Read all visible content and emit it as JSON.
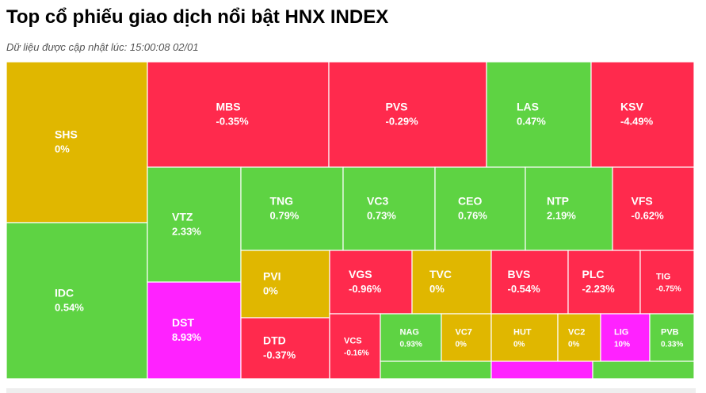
{
  "header": {
    "title": "Top cổ phiếu giao dịch nổi bật HNX INDEX",
    "subtitle": "Dữ liệu được cập nhật lúc: 15:00:08 02/01"
  },
  "colors": {
    "up": "#5ed343",
    "down": "#ff2a4d",
    "unchanged": "#e0b700",
    "ceiling": "#ff22ff"
  },
  "chart_data": {
    "type": "treemap",
    "title": "Top cổ phiếu giao dịch nổi bật HNX INDEX",
    "cells": [
      {
        "ticker": "SHS",
        "change": "0%",
        "status": "unchanged"
      },
      {
        "ticker": "IDC",
        "change": "0.54%",
        "status": "up"
      },
      {
        "ticker": "MBS",
        "change": "-0.35%",
        "status": "down"
      },
      {
        "ticker": "PVS",
        "change": "-0.29%",
        "status": "down"
      },
      {
        "ticker": "LAS",
        "change": "0.47%",
        "status": "up"
      },
      {
        "ticker": "KSV",
        "change": "-4.49%",
        "status": "down"
      },
      {
        "ticker": "VTZ",
        "change": "2.33%",
        "status": "up"
      },
      {
        "ticker": "DST",
        "change": "8.93%",
        "status": "ceiling"
      },
      {
        "ticker": "TNG",
        "change": "0.79%",
        "status": "up"
      },
      {
        "ticker": "VC3",
        "change": "0.73%",
        "status": "up"
      },
      {
        "ticker": "CEO",
        "change": "0.76%",
        "status": "up"
      },
      {
        "ticker": "NTP",
        "change": "2.19%",
        "status": "up"
      },
      {
        "ticker": "VFS",
        "change": "-0.62%",
        "status": "down"
      },
      {
        "ticker": "PVI",
        "change": "0%",
        "status": "unchanged"
      },
      {
        "ticker": "VGS",
        "change": "-0.96%",
        "status": "down"
      },
      {
        "ticker": "TVC",
        "change": "0%",
        "status": "unchanged"
      },
      {
        "ticker": "BVS",
        "change": "-0.54%",
        "status": "down"
      },
      {
        "ticker": "PLC",
        "change": "-2.23%",
        "status": "down"
      },
      {
        "ticker": "TIG",
        "change": "-0.75%",
        "status": "down"
      },
      {
        "ticker": "DTD",
        "change": "-0.37%",
        "status": "down"
      },
      {
        "ticker": "VCS",
        "change": "-0.16%",
        "status": "down"
      },
      {
        "ticker": "NAG",
        "change": "0.93%",
        "status": "up"
      },
      {
        "ticker": "VC7",
        "change": "0%",
        "status": "unchanged"
      },
      {
        "ticker": "HUT",
        "change": "0%",
        "status": "unchanged"
      },
      {
        "ticker": "VC2",
        "change": "0%",
        "status": "unchanged"
      },
      {
        "ticker": "LIG",
        "change": "10%",
        "status": "ceiling"
      },
      {
        "ticker": "PVB",
        "change": "0.33%",
        "status": "up"
      },
      {
        "ticker": "",
        "change": "",
        "status": "up"
      },
      {
        "ticker": "",
        "change": "",
        "status": "ceiling"
      },
      {
        "ticker": "",
        "change": "",
        "status": "up"
      }
    ]
  }
}
